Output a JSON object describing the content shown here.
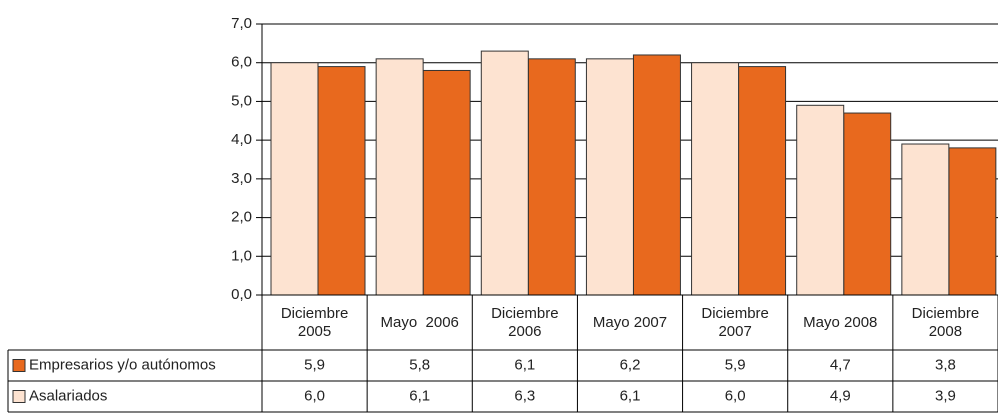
{
  "chart_data": {
    "type": "bar",
    "categories": [
      "Diciembre 2005",
      "Mayo  2006",
      "Diciembre 2006",
      "Mayo 2007",
      "Diciembre 2007",
      "Mayo 2008",
      "Diciembre 2008"
    ],
    "series": [
      {
        "name": "Empresarios y/o autónomos",
        "color": "#e8691e",
        "values": [
          5.9,
          5.8,
          6.1,
          6.2,
          5.9,
          4.7,
          3.8
        ],
        "value_labels": [
          "5,9",
          "5,8",
          "6,1",
          "6,2",
          "5,9",
          "4,7",
          "3,8"
        ]
      },
      {
        "name": "Asalariados",
        "color": "#fde3d1",
        "values": [
          6.0,
          6.1,
          6.3,
          6.1,
          6.0,
          4.9,
          3.9
        ],
        "value_labels": [
          "6,0",
          "6,1",
          "6,3",
          "6,1",
          "6,0",
          "4,9",
          "3,9"
        ]
      }
    ],
    "ylim": [
      0,
      7
    ],
    "yticks": [
      {
        "value": 0,
        "label": "0,0"
      },
      {
        "value": 1,
        "label": "1,0"
      },
      {
        "value": 2,
        "label": "2,0"
      },
      {
        "value": 3,
        "label": "3,0"
      },
      {
        "value": 4,
        "label": "4,0"
      },
      {
        "value": 5,
        "label": "5,0"
      },
      {
        "value": 6,
        "label": "6,0"
      },
      {
        "value": 7,
        "label": "7,0"
      }
    ],
    "grid": true
  }
}
